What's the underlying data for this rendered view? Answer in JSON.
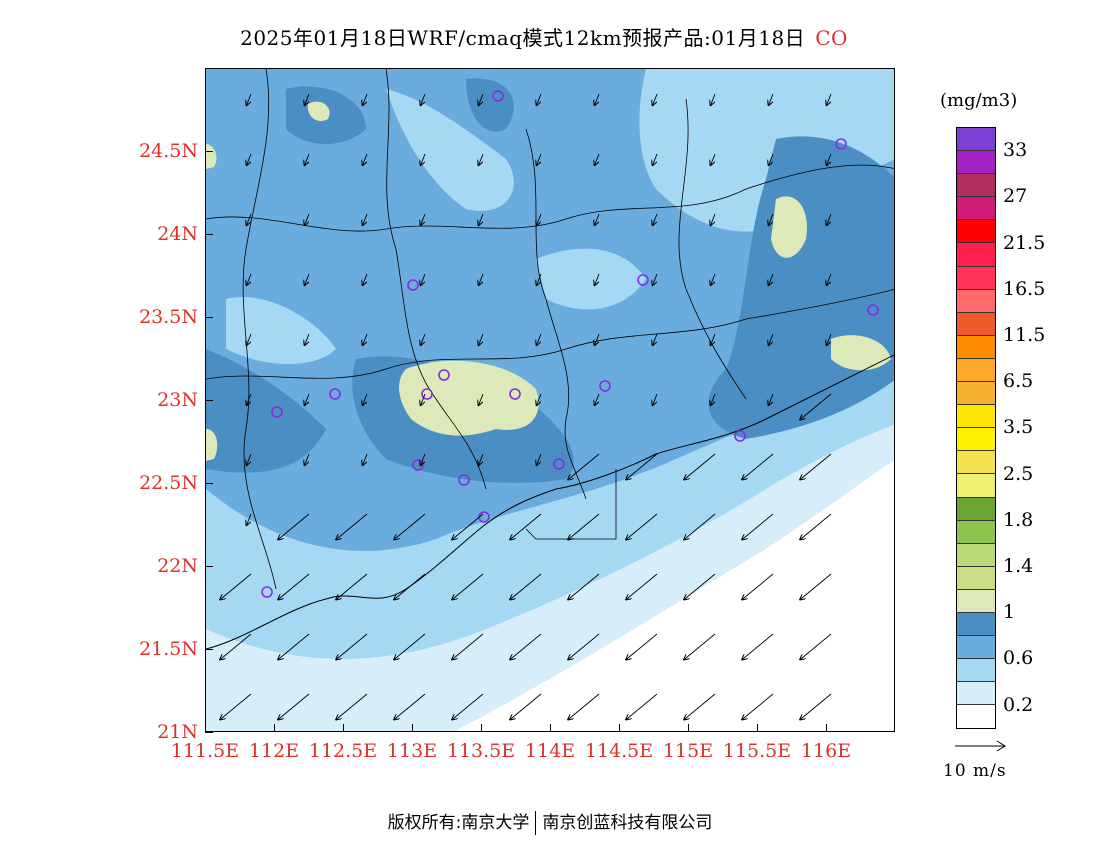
{
  "header": {
    "title": "2025年01月18日WRF/cmaq模式12km预报产品:01月18日",
    "species": "CO"
  },
  "map": {
    "lat_labels": [
      "24.5N",
      "24N",
      "23.5N",
      "23N",
      "22.5N",
      "22N",
      "21.5N",
      "21N"
    ],
    "lat_values": [
      24.5,
      24.0,
      23.5,
      23.0,
      22.5,
      22.0,
      21.5,
      21.0
    ],
    "lon_labels": [
      "111.5E",
      "112E",
      "112.5E",
      "113E",
      "113.5E",
      "114E",
      "114.5E",
      "115E",
      "115.5E",
      "116E"
    ],
    "lon_values": [
      111.5,
      112.0,
      112.5,
      113.0,
      113.5,
      114.0,
      114.5,
      115.0,
      115.5,
      116.0
    ],
    "lat_range": [
      21.0,
      25.0
    ],
    "lon_range": [
      111.5,
      116.5
    ],
    "station_count_shown": 18,
    "wind_direction": "northeast"
  },
  "legend": {
    "unit": "(mg/m3)",
    "labels": [
      "33",
      "27",
      "21.5",
      "16.5",
      "11.5",
      "6.5",
      "3.5",
      "2.5",
      "1.8",
      "1.4",
      "1",
      "0.6",
      "0.2"
    ],
    "colors": [
      "#7b3fd6",
      "#a020c0",
      "#b02d5e",
      "#cf1a78",
      "#ff0000",
      "#ff1f4f",
      "#ff3355",
      "#ff6a6a",
      "#f05a2a",
      "#ff8c00",
      "#ffa82a",
      "#f7b030",
      "#ffe600",
      "#fff000",
      "#f5e050",
      "#f0f070",
      "#6aa531",
      "#8cc44e",
      "#b9d97a",
      "#cadf85",
      "#dde9b8",
      "#4a8ec3",
      "#6aacdd",
      "#a5d8f3",
      "#d7eefa",
      "#ffffff"
    ]
  },
  "reference_vector": {
    "label": "10 m/s"
  },
  "footer": {
    "copyright": "版权所有:南京大学",
    "org": "南京创蓝科技有限公司"
  }
}
